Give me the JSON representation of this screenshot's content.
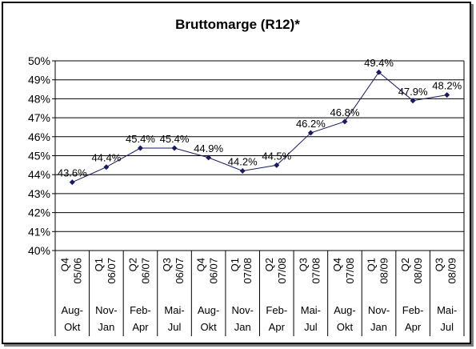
{
  "chart_data": {
    "type": "line",
    "title": "Bruttomarge (R12)*",
    "xlabel": "",
    "ylabel": "",
    "ylim": [
      0.4,
      0.5
    ],
    "ytick_labels": [
      "40%",
      "41%",
      "42%",
      "43%",
      "44%",
      "45%",
      "46%",
      "47%",
      "48%",
      "49%",
      "50%"
    ],
    "grid": "horizontal",
    "legend": "none",
    "categories": [
      {
        "quarter": "Q4",
        "year": "05/06",
        "period": [
          "Aug-",
          "Okt"
        ]
      },
      {
        "quarter": "Q1",
        "year": "06/07",
        "period": [
          "Nov-",
          "Jan"
        ]
      },
      {
        "quarter": "Q2",
        "year": "06/07",
        "period": [
          "Feb-",
          "Apr"
        ]
      },
      {
        "quarter": "Q3",
        "year": "06/07",
        "period": [
          "Mai-",
          "Jul"
        ]
      },
      {
        "quarter": "Q4",
        "year": "06/07",
        "period": [
          "Aug-",
          "Okt"
        ]
      },
      {
        "quarter": "Q1",
        "year": "07/08",
        "period": [
          "Nov-",
          "Jan"
        ]
      },
      {
        "quarter": "Q2",
        "year": "07/08",
        "period": [
          "Feb-",
          "Apr"
        ]
      },
      {
        "quarter": "Q3",
        "year": "07/08",
        "period": [
          "Mai-",
          "Jul"
        ]
      },
      {
        "quarter": "Q4",
        "year": "07/08",
        "period": [
          "Aug-",
          "Okt"
        ]
      },
      {
        "quarter": "Q1",
        "year": "08/09",
        "period": [
          "Nov-",
          "Jan"
        ]
      },
      {
        "quarter": "Q2",
        "year": "08/09",
        "period": [
          "Feb-",
          "Apr"
        ]
      },
      {
        "quarter": "Q3",
        "year": "08/09",
        "period": [
          "Mai-",
          "Jul"
        ]
      }
    ],
    "series": [
      {
        "values": [
          0.436,
          0.444,
          0.454,
          0.454,
          0.449,
          0.442,
          0.445,
          0.462,
          0.468,
          0.494,
          0.479,
          0.482
        ],
        "labels": [
          "43.6%",
          "44.4%",
          "45.4%",
          "45.4%",
          "44.9%",
          "44.2%",
          "44.5%",
          "46.2%",
          "46.8%",
          "49.4%",
          "47.9%",
          "48.2%"
        ],
        "color": "#1a1a5e"
      }
    ]
  }
}
